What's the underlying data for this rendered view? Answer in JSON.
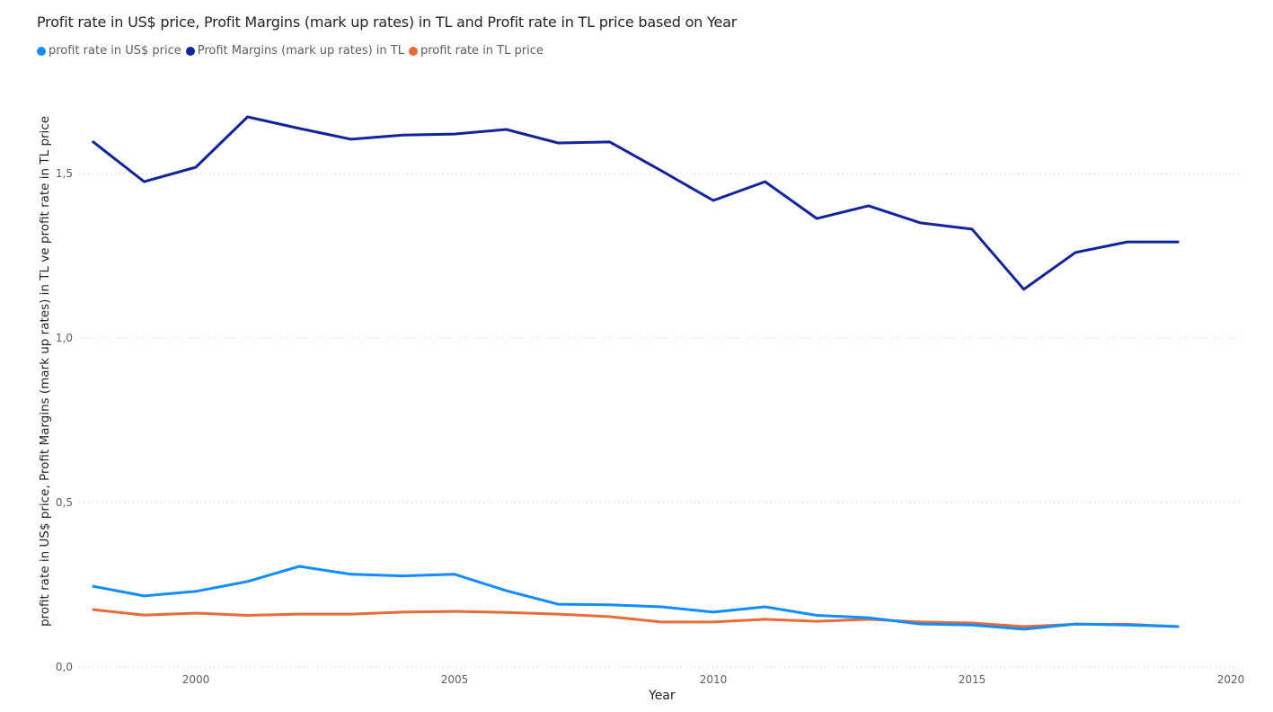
{
  "chart_data": {
    "type": "line",
    "title": "Profit rate in US$ price, Profit Margins (mark up rates) in TL and Profit rate in TL price based on Year",
    "xlabel": "Year",
    "ylabel": "profit rate in US$ price, Profit Margins (mark up rates) in TL ve profit rate in TL price",
    "x": [
      1998,
      1999,
      2000,
      2001,
      2002,
      2003,
      2004,
      2005,
      2006,
      2007,
      2008,
      2009,
      2010,
      2011,
      2012,
      2013,
      2014,
      2015,
      2016,
      2017,
      2018,
      2019
    ],
    "xlim": [
      1997.5,
      2020.2
    ],
    "ylim": [
      0,
      1.7
    ],
    "x_ticks": [
      2000,
      2005,
      2010,
      2015,
      2020
    ],
    "x_tick_labels": [
      "2000",
      "2005",
      "2010",
      "2015",
      "2020"
    ],
    "y_ticks": [
      0,
      0.5,
      1.0,
      1.5
    ],
    "y_tick_labels": [
      "0,0",
      "0,5",
      "1,0",
      "1,5"
    ],
    "grid": "horizontal-dotted",
    "legend_position": "top-left",
    "series": [
      {
        "name": "profit rate in US$ price",
        "color": "#118DFF",
        "values": [
          0.246,
          0.216,
          0.23,
          0.26,
          0.306,
          0.282,
          0.277,
          0.282,
          0.232,
          0.191,
          0.189,
          0.183,
          0.167,
          0.183,
          0.157,
          0.15,
          0.131,
          0.128,
          0.115,
          0.131,
          0.128,
          0.123
        ]
      },
      {
        "name": "Profit Margins (mark up rates) in TL",
        "color": "#12239E",
        "values": [
          1.598,
          1.475,
          1.519,
          1.672,
          1.637,
          1.604,
          1.617,
          1.62,
          1.634,
          1.593,
          1.596,
          1.508,
          1.418,
          1.475,
          1.363,
          1.402,
          1.35,
          1.331,
          1.148,
          1.26,
          1.292,
          1.292
        ]
      },
      {
        "name": "profit rate in TL price",
        "color": "#E66C37",
        "values": [
          0.175,
          0.158,
          0.164,
          0.157,
          0.161,
          0.161,
          0.167,
          0.169,
          0.166,
          0.161,
          0.153,
          0.137,
          0.137,
          0.145,
          0.139,
          0.145,
          0.137,
          0.134,
          0.123,
          0.13,
          0.13,
          0.123
        ]
      }
    ]
  }
}
